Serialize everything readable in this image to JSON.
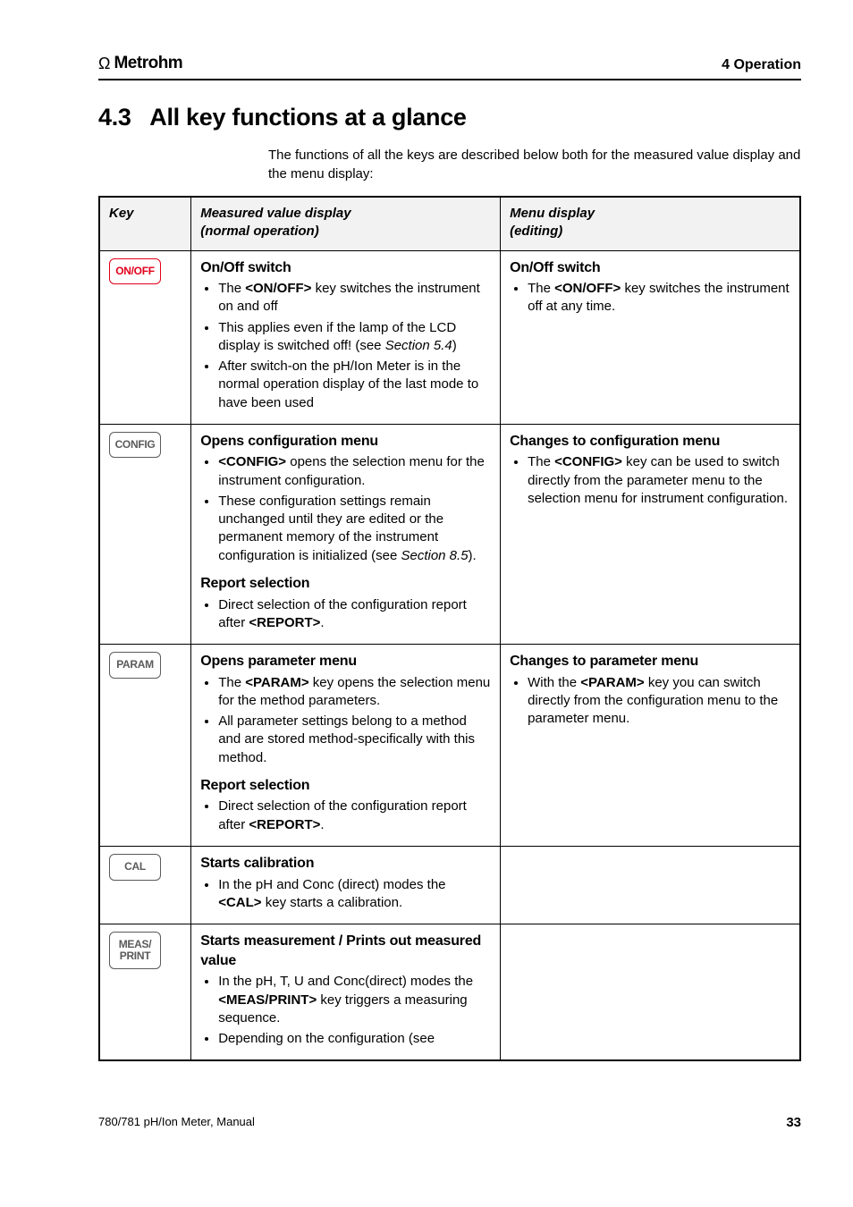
{
  "header": {
    "logo_brand": "Metrohm",
    "chapter": "4 Operation"
  },
  "section": {
    "number": "4.3",
    "title": "All key functions at a glance",
    "intro": "The functions of all the keys are described below both for the measured value display and the menu display:"
  },
  "table": {
    "head": {
      "key": "Key",
      "colA": "Measured value display\n(normal operation)",
      "colB": "Menu display\n(editing)"
    },
    "rows": [
      {
        "key_label": "ON/OFF",
        "key_color": "red",
        "a_blocks": [
          {
            "heading": "On/Off switch",
            "items": [
              "The <ON/OFF> key switches the instrument on and off",
              "This applies even if the lamp of the LCD display is switched off! (see {i}Section 5.4{/i})",
              "After switch-on the pH/Ion Meter is in the normal operation display of the last mode to have been used"
            ]
          }
        ],
        "b_blocks": [
          {
            "heading": "On/Off switch",
            "items": [
              "The <ON/OFF> key switches the instrument off at any time."
            ]
          }
        ]
      },
      {
        "key_label": "CONFIG",
        "key_color": "gray",
        "a_blocks": [
          {
            "heading": "Opens configuration menu",
            "items": [
              "<CONFIG> opens the selection menu for the instrument configuration.",
              "These configuration settings remain unchanged until they are edited or the permanent memory of the instrument configuration is initialized (see {i}Section 8.5{/i})."
            ]
          },
          {
            "heading": "Report selection",
            "items": [
              "Direct selection of the configuration report after <REPORT>."
            ]
          }
        ],
        "b_blocks": [
          {
            "heading": "Changes to configuration menu",
            "items": [
              "The <CONFIG> key can be used to switch directly from the parameter menu to the selection menu for instrument configuration."
            ]
          }
        ]
      },
      {
        "key_label": "PARAM",
        "key_color": "gray",
        "a_blocks": [
          {
            "heading": "Opens parameter menu",
            "items": [
              "The <PARAM> key opens the selection menu for the method parameters.",
              "All parameter settings belong to a method and are stored method-specifically with this method."
            ]
          },
          {
            "heading": "Report selection",
            "items": [
              "Direct selection of the configuration report after <REPORT>."
            ]
          }
        ],
        "b_blocks": [
          {
            "heading": "Changes to parameter menu",
            "items": [
              "With the <PARAM> key you can switch directly from the configuration menu to the parameter menu."
            ]
          }
        ]
      },
      {
        "key_label": "CAL",
        "key_color": "gray",
        "a_blocks": [
          {
            "heading": "Starts calibration",
            "items": [
              "In the pH and Conc (direct) modes the <CAL> key starts a calibration."
            ]
          }
        ],
        "b_blocks": []
      },
      {
        "key_label": "MEAS/\nPRINT",
        "key_color": "gray",
        "a_blocks": [
          {
            "heading": "Starts measurement / Prints out measured value",
            "items": [
              "In the pH, T, U and Conc(direct) modes the <MEAS/PRINT> key triggers a measuring sequence.",
              "Depending on the configuration (see"
            ]
          }
        ],
        "b_blocks": []
      }
    ]
  },
  "footer": {
    "doc": "780/781 pH/Ion Meter, Manual",
    "page": "33"
  },
  "colors": {
    "accent_red": "#e2001a",
    "accent_gray": "#5a5a5a",
    "rule": "#000000",
    "thead_bg": "#f2f2f2"
  }
}
